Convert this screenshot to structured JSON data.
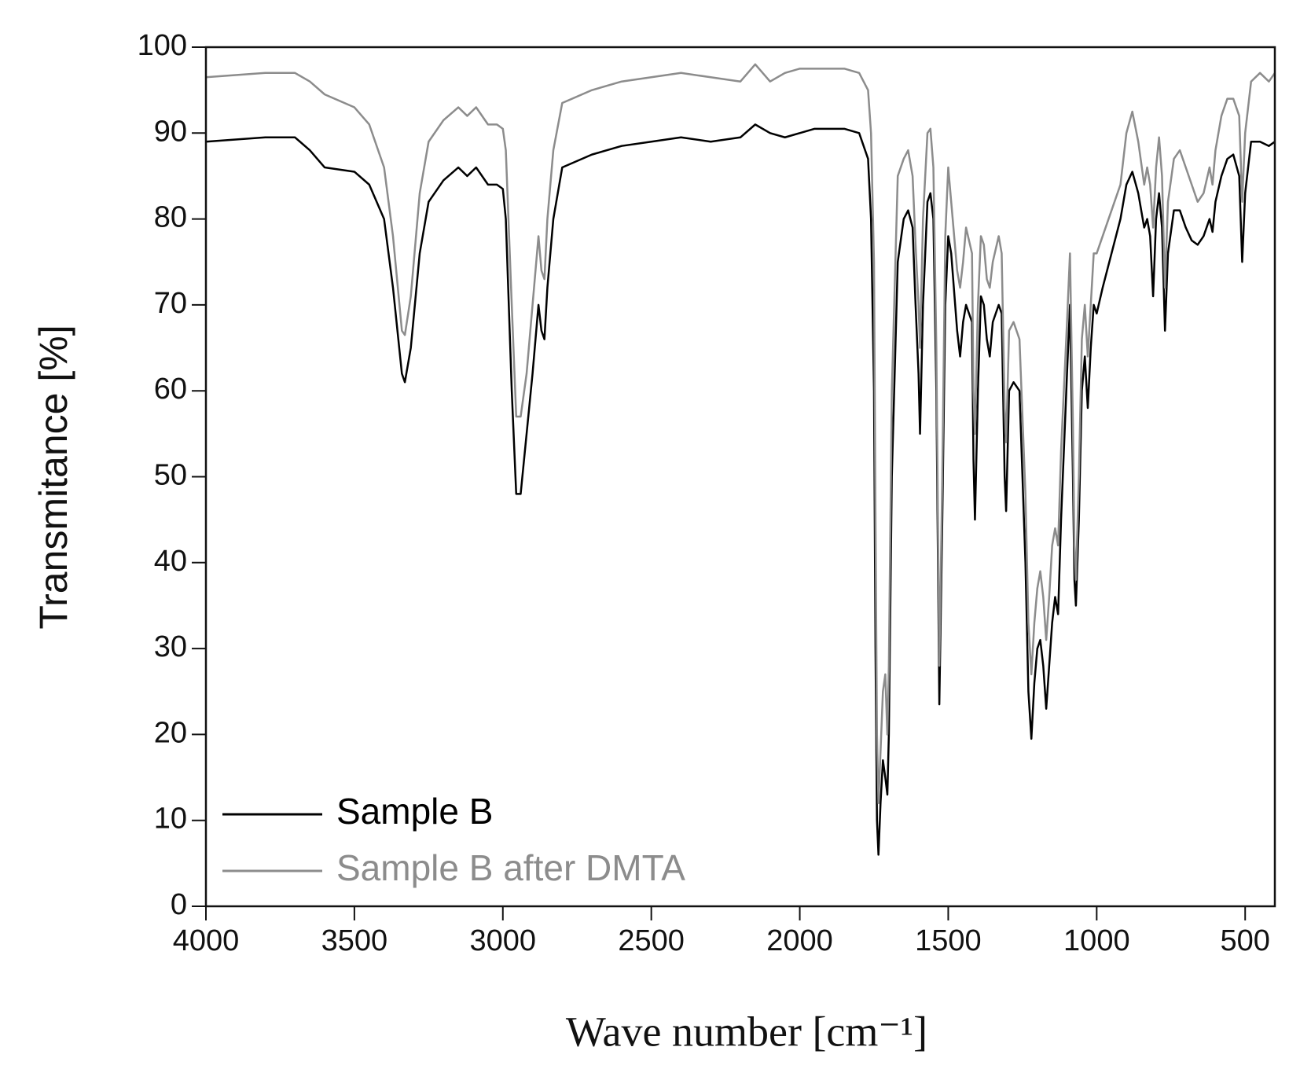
{
  "chart_data": {
    "type": "line",
    "x_label": "Wave number [cm⁻¹]",
    "y_label": "Transmitance [%]",
    "xlim": [
      4000,
      400
    ],
    "ylim": [
      0,
      100
    ],
    "xticks": [
      4000,
      3500,
      3000,
      2500,
      2000,
      1500,
      1000,
      500
    ],
    "yticks": [
      0,
      10,
      20,
      30,
      40,
      50,
      60,
      70,
      80,
      90,
      100
    ],
    "grid": false,
    "legend": "lower left",
    "x": [
      4000,
      3800,
      3700,
      3650,
      3600,
      3500,
      3450,
      3400,
      3370,
      3340,
      3330,
      3310,
      3280,
      3250,
      3200,
      3150,
      3120,
      3090,
      3050,
      3020,
      3000,
      2990,
      2970,
      2955,
      2940,
      2920,
      2900,
      2880,
      2870,
      2860,
      2850,
      2830,
      2800,
      2700,
      2600,
      2500,
      2400,
      2300,
      2200,
      2150,
      2100,
      2050,
      2000,
      1950,
      1850,
      1800,
      1770,
      1760,
      1750,
      1745,
      1740,
      1735,
      1728,
      1720,
      1712,
      1705,
      1700,
      1690,
      1670,
      1650,
      1635,
      1620,
      1610,
      1600,
      1595,
      1585,
      1570,
      1560,
      1550,
      1540,
      1530,
      1520,
      1510,
      1500,
      1490,
      1470,
      1460,
      1450,
      1440,
      1420,
      1415,
      1410,
      1400,
      1390,
      1380,
      1370,
      1360,
      1350,
      1330,
      1320,
      1310,
      1305,
      1295,
      1280,
      1260,
      1250,
      1240,
      1230,
      1220,
      1210,
      1200,
      1190,
      1180,
      1170,
      1160,
      1150,
      1140,
      1130,
      1120,
      1100,
      1090,
      1080,
      1075,
      1070,
      1060,
      1050,
      1040,
      1030,
      1020,
      1010,
      1000,
      980,
      950,
      920,
      900,
      880,
      860,
      840,
      830,
      820,
      810,
      800,
      790,
      780,
      770,
      760,
      740,
      720,
      700,
      680,
      660,
      640,
      620,
      610,
      600,
      580,
      560,
      540,
      520,
      510,
      500,
      480,
      450,
      420,
      400
    ],
    "series": [
      {
        "name": "Sample B",
        "color": "#000000",
        "values": [
          89,
          89.5,
          89.5,
          88,
          86,
          85.5,
          84,
          80,
          72,
          62,
          61,
          65,
          76,
          82,
          84.5,
          86,
          85,
          86,
          84,
          84,
          83.5,
          80,
          60,
          48,
          48,
          55,
          62,
          70,
          67,
          66,
          72,
          80,
          86,
          87.5,
          88.5,
          89,
          89.5,
          89,
          89.5,
          91,
          90,
          89.5,
          90,
          90.5,
          90.5,
          90,
          87,
          80,
          60,
          30,
          10,
          6,
          12,
          17,
          15,
          13,
          20,
          50,
          75,
          80,
          81,
          79,
          70,
          62,
          55,
          70,
          82,
          83,
          80,
          60,
          23.5,
          45,
          70,
          78,
          76,
          67,
          64,
          68,
          70,
          68,
          52,
          45,
          60,
          71,
          70,
          66,
          64,
          68,
          70,
          69,
          50,
          46,
          60,
          61,
          60,
          50,
          40,
          25,
          19.5,
          26,
          30,
          31,
          28,
          23,
          28,
          33,
          36,
          34,
          45,
          62,
          70,
          50,
          38,
          35,
          45,
          60,
          64,
          58,
          65,
          70,
          69,
          72,
          76,
          80,
          84,
          85.5,
          83,
          79,
          80,
          78,
          71,
          80,
          83,
          79,
          67,
          76,
          81,
          81,
          79,
          77.5,
          77,
          78,
          80,
          78.5,
          82,
          85,
          87,
          87.5,
          85,
          75,
          83,
          89,
          89,
          88.5,
          89
        ]
      },
      {
        "name": "Sample B after DMTA",
        "color": "#8c8c8c",
        "values": [
          96.5,
          97,
          97,
          96,
          94.5,
          93,
          91,
          86,
          78,
          67,
          66.5,
          71,
          83,
          89,
          91.5,
          93,
          92,
          93,
          91,
          91,
          90.5,
          88,
          70,
          57,
          57,
          62,
          70,
          78,
          74,
          73,
          80,
          88,
          93.5,
          95,
          96,
          96.5,
          97,
          96.5,
          96,
          98,
          96,
          97,
          97.5,
          97.5,
          97.5,
          97,
          95,
          90,
          75,
          45,
          20,
          12,
          18,
          25,
          27,
          20,
          28,
          60,
          85,
          87,
          88,
          85,
          77,
          70,
          65,
          80,
          90,
          90.5,
          86,
          65,
          28,
          50,
          78,
          86,
          82,
          74,
          72,
          75,
          79,
          76,
          60,
          55,
          70,
          78,
          77,
          73,
          72,
          75,
          78,
          76,
          58,
          54,
          67,
          68,
          66,
          57,
          48,
          33,
          27,
          33,
          37,
          39,
          36,
          31,
          36,
          42,
          44,
          42,
          53,
          68,
          76,
          56,
          42,
          38,
          50,
          66,
          70,
          64,
          70,
          76,
          76,
          78,
          81,
          84,
          90,
          92.5,
          89,
          84,
          86,
          84,
          79,
          86,
          89.5,
          85,
          72,
          82,
          87,
          88,
          86,
          84,
          82,
          83,
          86,
          84,
          88,
          92,
          94,
          94,
          92,
          82,
          90,
          96,
          97,
          96,
          97
        ]
      }
    ]
  }
}
